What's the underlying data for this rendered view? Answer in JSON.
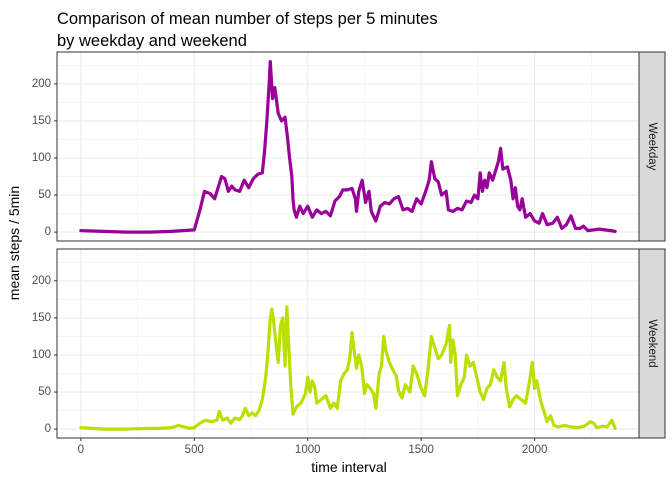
{
  "chart_data": {
    "type": "line",
    "title": "Comparison of mean number of steps per 5 minutes\nby weekday and weekend",
    "xlabel": "time interval",
    "ylabel": "mean steps / 5min",
    "xlim": [
      -105,
      2460
    ],
    "ylim": [
      -12,
      243
    ],
    "x_ticks": [
      0,
      500,
      1000,
      1500,
      2000
    ],
    "y_ticks": [
      0,
      50,
      100,
      150,
      200
    ],
    "grid": true,
    "legend": "none",
    "facets": [
      {
        "name": "Weekday",
        "color": "#990099",
        "points": [
          [
            0,
            2
          ],
          [
            100,
            1
          ],
          [
            200,
            0
          ],
          [
            300,
            0
          ],
          [
            400,
            1
          ],
          [
            500,
            3
          ],
          [
            525,
            30
          ],
          [
            545,
            55
          ],
          [
            570,
            52
          ],
          [
            590,
            45
          ],
          [
            610,
            65
          ],
          [
            620,
            75
          ],
          [
            635,
            72
          ],
          [
            650,
            55
          ],
          [
            665,
            62
          ],
          [
            680,
            57
          ],
          [
            700,
            55
          ],
          [
            720,
            70
          ],
          [
            740,
            60
          ],
          [
            760,
            72
          ],
          [
            780,
            78
          ],
          [
            800,
            80
          ],
          [
            810,
            110
          ],
          [
            820,
            150
          ],
          [
            830,
            200
          ],
          [
            835,
            230
          ],
          [
            845,
            180
          ],
          [
            855,
            195
          ],
          [
            870,
            160
          ],
          [
            885,
            150
          ],
          [
            900,
            155
          ],
          [
            910,
            130
          ],
          [
            920,
            100
          ],
          [
            930,
            75
          ],
          [
            935,
            45
          ],
          [
            940,
            30
          ],
          [
            950,
            20
          ],
          [
            965,
            35
          ],
          [
            980,
            25
          ],
          [
            1000,
            35
          ],
          [
            1020,
            20
          ],
          [
            1040,
            30
          ],
          [
            1060,
            25
          ],
          [
            1080,
            28
          ],
          [
            1100,
            22
          ],
          [
            1120,
            42
          ],
          [
            1140,
            48
          ],
          [
            1155,
            57
          ],
          [
            1175,
            57
          ],
          [
            1195,
            59
          ],
          [
            1210,
            45
          ],
          [
            1215,
            28
          ],
          [
            1225,
            55
          ],
          [
            1240,
            70
          ],
          [
            1255,
            40
          ],
          [
            1270,
            55
          ],
          [
            1280,
            28
          ],
          [
            1300,
            15
          ],
          [
            1320,
            35
          ],
          [
            1340,
            40
          ],
          [
            1360,
            38
          ],
          [
            1380,
            45
          ],
          [
            1400,
            48
          ],
          [
            1420,
            30
          ],
          [
            1440,
            32
          ],
          [
            1460,
            28
          ],
          [
            1480,
            45
          ],
          [
            1500,
            38
          ],
          [
            1520,
            55
          ],
          [
            1535,
            70
          ],
          [
            1545,
            95
          ],
          [
            1560,
            72
          ],
          [
            1575,
            68
          ],
          [
            1590,
            50
          ],
          [
            1610,
            55
          ],
          [
            1620,
            30
          ],
          [
            1640,
            28
          ],
          [
            1660,
            32
          ],
          [
            1680,
            30
          ],
          [
            1700,
            42
          ],
          [
            1720,
            40
          ],
          [
            1735,
            50
          ],
          [
            1750,
            45
          ],
          [
            1760,
            80
          ],
          [
            1770,
            55
          ],
          [
            1780,
            70
          ],
          [
            1790,
            60
          ],
          [
            1800,
            80
          ],
          [
            1815,
            70
          ],
          [
            1830,
            85
          ],
          [
            1840,
            95
          ],
          [
            1850,
            113
          ],
          [
            1860,
            85
          ],
          [
            1880,
            88
          ],
          [
            1895,
            70
          ],
          [
            1905,
            45
          ],
          [
            1915,
            60
          ],
          [
            1925,
            35
          ],
          [
            1935,
            30
          ],
          [
            1945,
            45
          ],
          [
            1960,
            20
          ],
          [
            1980,
            25
          ],
          [
            2000,
            15
          ],
          [
            2020,
            12
          ],
          [
            2035,
            25
          ],
          [
            2055,
            10
          ],
          [
            2080,
            12
          ],
          [
            2100,
            20
          ],
          [
            2120,
            5
          ],
          [
            2140,
            10
          ],
          [
            2160,
            22
          ],
          [
            2180,
            5
          ],
          [
            2200,
            5
          ],
          [
            2215,
            8
          ],
          [
            2235,
            2
          ],
          [
            2260,
            3
          ],
          [
            2285,
            4
          ],
          [
            2310,
            3
          ],
          [
            2335,
            2
          ],
          [
            2355,
            1
          ]
        ]
      },
      {
        "name": "Weekend",
        "color": "#b8e000",
        "points": [
          [
            0,
            2
          ],
          [
            100,
            0
          ],
          [
            200,
            0
          ],
          [
            300,
            1
          ],
          [
            350,
            1
          ],
          [
            400,
            2
          ],
          [
            430,
            5
          ],
          [
            455,
            3
          ],
          [
            480,
            1
          ],
          [
            500,
            2
          ],
          [
            525,
            8
          ],
          [
            550,
            12
          ],
          [
            575,
            10
          ],
          [
            600,
            12
          ],
          [
            610,
            24
          ],
          [
            625,
            12
          ],
          [
            645,
            15
          ],
          [
            660,
            8
          ],
          [
            680,
            15
          ],
          [
            700,
            13
          ],
          [
            710,
            17
          ],
          [
            725,
            28
          ],
          [
            740,
            18
          ],
          [
            755,
            22
          ],
          [
            770,
            18
          ],
          [
            785,
            25
          ],
          [
            800,
            40
          ],
          [
            815,
            70
          ],
          [
            825,
            105
          ],
          [
            835,
            150
          ],
          [
            842,
            162
          ],
          [
            850,
            145
          ],
          [
            860,
            115
          ],
          [
            870,
            90
          ],
          [
            880,
            140
          ],
          [
            890,
            150
          ],
          [
            900,
            85
          ],
          [
            908,
            165
          ],
          [
            915,
            120
          ],
          [
            925,
            60
          ],
          [
            935,
            20
          ],
          [
            950,
            30
          ],
          [
            970,
            35
          ],
          [
            990,
            48
          ],
          [
            1000,
            70
          ],
          [
            1010,
            50
          ],
          [
            1020,
            65
          ],
          [
            1030,
            58
          ],
          [
            1040,
            35
          ],
          [
            1060,
            40
          ],
          [
            1080,
            45
          ],
          [
            1100,
            28
          ],
          [
            1115,
            35
          ],
          [
            1130,
            28
          ],
          [
            1145,
            65
          ],
          [
            1160,
            75
          ],
          [
            1175,
            80
          ],
          [
            1185,
            95
          ],
          [
            1195,
            130
          ],
          [
            1205,
            105
          ],
          [
            1215,
            82
          ],
          [
            1225,
            100
          ],
          [
            1238,
            85
          ],
          [
            1250,
            48
          ],
          [
            1260,
            60
          ],
          [
            1275,
            55
          ],
          [
            1290,
            48
          ],
          [
            1300,
            28
          ],
          [
            1315,
            75
          ],
          [
            1325,
            85
          ],
          [
            1335,
            125
          ],
          [
            1345,
            105
          ],
          [
            1360,
            90
          ],
          [
            1375,
            80
          ],
          [
            1390,
            72
          ],
          [
            1400,
            52
          ],
          [
            1415,
            42
          ],
          [
            1430,
            60
          ],
          [
            1450,
            50
          ],
          [
            1465,
            85
          ],
          [
            1480,
            75
          ],
          [
            1500,
            55
          ],
          [
            1515,
            45
          ],
          [
            1530,
            80
          ],
          [
            1545,
            125
          ],
          [
            1560,
            110
          ],
          [
            1575,
            95
          ],
          [
            1590,
            100
          ],
          [
            1610,
            115
          ],
          [
            1625,
            140
          ],
          [
            1630,
            90
          ],
          [
            1640,
            120
          ],
          [
            1650,
            100
          ],
          [
            1660,
            45
          ],
          [
            1675,
            60
          ],
          [
            1690,
            70
          ],
          [
            1700,
            100
          ],
          [
            1715,
            85
          ],
          [
            1730,
            90
          ],
          [
            1745,
            70
          ],
          [
            1760,
            50
          ],
          [
            1775,
            40
          ],
          [
            1790,
            55
          ],
          [
            1805,
            60
          ],
          [
            1820,
            80
          ],
          [
            1835,
            70
          ],
          [
            1850,
            65
          ],
          [
            1865,
            90
          ],
          [
            1875,
            55
          ],
          [
            1890,
            30
          ],
          [
            1905,
            40
          ],
          [
            1920,
            45
          ],
          [
            1940,
            40
          ],
          [
            1960,
            35
          ],
          [
            1975,
            60
          ],
          [
            1990,
            90
          ],
          [
            2000,
            55
          ],
          [
            2010,
            65
          ],
          [
            2025,
            40
          ],
          [
            2040,
            25
          ],
          [
            2055,
            10
          ],
          [
            2070,
            18
          ],
          [
            2085,
            5
          ],
          [
            2105,
            3
          ],
          [
            2130,
            5
          ],
          [
            2160,
            3
          ],
          [
            2190,
            2
          ],
          [
            2220,
            4
          ],
          [
            2245,
            10
          ],
          [
            2260,
            8
          ],
          [
            2275,
            2
          ],
          [
            2300,
            4
          ],
          [
            2320,
            3
          ],
          [
            2340,
            12
          ],
          [
            2355,
            1
          ]
        ]
      }
    ]
  }
}
